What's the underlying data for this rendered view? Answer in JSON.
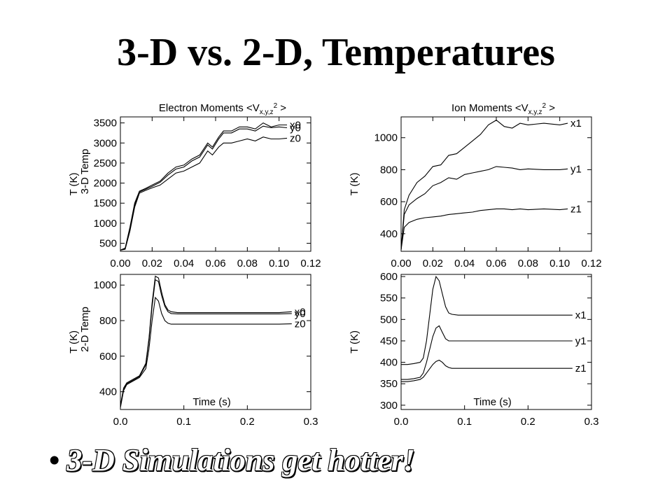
{
  "slide": {
    "title": "3-D vs. 2-D, Temperatures",
    "bullet_marker": "•",
    "bullet": "3-D Simulations get hotter!"
  },
  "chart_data": [
    {
      "id": "p3d_electron",
      "type": "line",
      "title": "Electron Moments <V",
      "title_sub": "x,y,z",
      "title_sup": "2",
      "title_end": ">",
      "ylabel": "T (K)",
      "side_label": "3-D Temp",
      "xlabel": "",
      "xlim": [
        0,
        0.12
      ],
      "ylim": [
        300,
        3650
      ],
      "xticks": [
        "0.00",
        "0.02",
        "0.04",
        "0.06",
        "0.08",
        "0.10",
        "0.12"
      ],
      "yticks": [
        "500",
        "1000",
        "1500",
        "2000",
        "2500",
        "3000",
        "3500"
      ],
      "series": [
        {
          "name": "x0",
          "x": [
            0,
            0.003,
            0.006,
            0.009,
            0.012,
            0.016,
            0.02,
            0.025,
            0.03,
            0.035,
            0.04,
            0.045,
            0.05,
            0.055,
            0.058,
            0.062,
            0.065,
            0.07,
            0.075,
            0.08,
            0.085,
            0.09,
            0.095,
            0.1,
            0.105
          ],
          "y": [
            330,
            380,
            900,
            1500,
            1800,
            1870,
            1950,
            2050,
            2250,
            2400,
            2450,
            2600,
            2700,
            3000,
            2900,
            3150,
            3300,
            3300,
            3400,
            3400,
            3350,
            3500,
            3400,
            3450,
            3450
          ]
        },
        {
          "name": "y0",
          "x": [
            0,
            0.003,
            0.006,
            0.009,
            0.012,
            0.016,
            0.02,
            0.025,
            0.03,
            0.035,
            0.04,
            0.045,
            0.05,
            0.055,
            0.058,
            0.062,
            0.065,
            0.07,
            0.075,
            0.08,
            0.085,
            0.09,
            0.095,
            0.1,
            0.105
          ],
          "y": [
            330,
            360,
            850,
            1450,
            1780,
            1850,
            1920,
            2020,
            2200,
            2350,
            2400,
            2550,
            2650,
            2950,
            2850,
            3100,
            3250,
            3250,
            3350,
            3350,
            3300,
            3420,
            3380,
            3400,
            3380
          ]
        },
        {
          "name": "z0",
          "x": [
            0,
            0.003,
            0.006,
            0.009,
            0.012,
            0.016,
            0.02,
            0.025,
            0.03,
            0.035,
            0.04,
            0.045,
            0.05,
            0.055,
            0.058,
            0.062,
            0.065,
            0.07,
            0.075,
            0.08,
            0.085,
            0.09,
            0.095,
            0.1,
            0.105
          ],
          "y": [
            330,
            350,
            800,
            1400,
            1750,
            1820,
            1880,
            1950,
            2100,
            2250,
            2300,
            2400,
            2500,
            2800,
            2700,
            2900,
            3000,
            3000,
            3050,
            3100,
            3050,
            3150,
            3100,
            3100,
            3120
          ]
        }
      ]
    },
    {
      "id": "p3d_ion",
      "type": "line",
      "title": "Ion Moments <V",
      "title_sub": "x,y,z",
      "title_sup": "2",
      "title_end": ">",
      "ylabel": "T (K)",
      "side_label": "",
      "xlabel": "",
      "xlim": [
        0,
        0.12
      ],
      "ylim": [
        290,
        1130
      ],
      "xticks": [
        "0.00",
        "0.02",
        "0.04",
        "0.06",
        "0.08",
        "0.10",
        "0.12"
      ],
      "yticks": [
        "400",
        "600",
        "800",
        "1000"
      ],
      "series": [
        {
          "name": "x1",
          "x": [
            0,
            0.002,
            0.005,
            0.01,
            0.015,
            0.02,
            0.025,
            0.03,
            0.035,
            0.04,
            0.045,
            0.05,
            0.055,
            0.06,
            0.065,
            0.07,
            0.075,
            0.08,
            0.09,
            0.1,
            0.105
          ],
          "y": [
            300,
            550,
            640,
            720,
            760,
            820,
            830,
            890,
            900,
            940,
            980,
            1020,
            1080,
            1110,
            1070,
            1060,
            1090,
            1080,
            1090,
            1080,
            1090
          ]
        },
        {
          "name": "y1",
          "x": [
            0,
            0.002,
            0.005,
            0.01,
            0.015,
            0.02,
            0.025,
            0.03,
            0.035,
            0.04,
            0.045,
            0.05,
            0.055,
            0.06,
            0.065,
            0.07,
            0.075,
            0.08,
            0.09,
            0.1,
            0.105
          ],
          "y": [
            300,
            520,
            580,
            620,
            650,
            700,
            720,
            750,
            740,
            770,
            780,
            790,
            800,
            820,
            815,
            810,
            800,
            805,
            800,
            800,
            805
          ]
        },
        {
          "name": "z1",
          "x": [
            0,
            0.002,
            0.005,
            0.01,
            0.015,
            0.02,
            0.025,
            0.03,
            0.035,
            0.04,
            0.045,
            0.05,
            0.055,
            0.06,
            0.065,
            0.07,
            0.075,
            0.08,
            0.09,
            0.1,
            0.105
          ],
          "y": [
            300,
            440,
            470,
            490,
            500,
            505,
            510,
            520,
            525,
            530,
            535,
            545,
            550,
            555,
            555,
            550,
            555,
            550,
            555,
            550,
            555
          ]
        }
      ]
    },
    {
      "id": "p2d_electron",
      "type": "line",
      "title": "",
      "ylabel": "T (K)",
      "side_label": "2-D Temp",
      "xlabel": "Time (s)",
      "xlim": [
        0,
        0.3
      ],
      "ylim": [
        300,
        1060
      ],
      "xticks": [
        "0.0",
        "0.1",
        "0.2",
        "0.3"
      ],
      "yticks": [
        "400",
        "600",
        "800",
        "1000"
      ],
      "series": [
        {
          "name": "x0",
          "x": [
            0,
            0.005,
            0.01,
            0.02,
            0.03,
            0.04,
            0.045,
            0.05,
            0.055,
            0.06,
            0.065,
            0.07,
            0.075,
            0.08,
            0.09,
            0.1,
            0.15,
            0.2,
            0.25,
            0.27
          ],
          "y": [
            320,
            420,
            450,
            470,
            490,
            560,
            700,
            900,
            1050,
            1040,
            960,
            890,
            860,
            850,
            845,
            845,
            845,
            845,
            845,
            850
          ]
        },
        {
          "name": "y0",
          "x": [
            0,
            0.005,
            0.01,
            0.02,
            0.03,
            0.04,
            0.045,
            0.05,
            0.055,
            0.06,
            0.065,
            0.07,
            0.075,
            0.08,
            0.09,
            0.1,
            0.15,
            0.2,
            0.25,
            0.27
          ],
          "y": [
            320,
            415,
            445,
            465,
            485,
            550,
            690,
            880,
            1030,
            1020,
            940,
            880,
            850,
            840,
            838,
            838,
            838,
            838,
            838,
            840
          ]
        },
        {
          "name": "z0",
          "x": [
            0,
            0.005,
            0.01,
            0.02,
            0.03,
            0.04,
            0.045,
            0.05,
            0.055,
            0.06,
            0.065,
            0.07,
            0.075,
            0.08,
            0.09,
            0.1,
            0.15,
            0.2,
            0.25,
            0.27
          ],
          "y": [
            310,
            405,
            440,
            460,
            480,
            530,
            640,
            800,
            930,
            910,
            840,
            800,
            785,
            780,
            780,
            780,
            780,
            780,
            780,
            782
          ]
        }
      ]
    },
    {
      "id": "p2d_ion",
      "type": "line",
      "title": "",
      "ylabel": "T (K)",
      "side_label": "",
      "xlabel": "Time (s)",
      "xlim": [
        0,
        0.3
      ],
      "ylim": [
        290,
        605
      ],
      "xticks": [
        "0.0",
        "0.1",
        "0.2",
        "0.3"
      ],
      "yticks": [
        "300",
        "350",
        "400",
        "450",
        "500",
        "550",
        "600"
      ],
      "series": [
        {
          "name": "x1",
          "x": [
            0,
            0.01,
            0.02,
            0.03,
            0.035,
            0.04,
            0.045,
            0.05,
            0.055,
            0.06,
            0.065,
            0.07,
            0.075,
            0.08,
            0.09,
            0.1,
            0.15,
            0.2,
            0.25,
            0.27
          ],
          "y": [
            395,
            395,
            397,
            400,
            410,
            450,
            510,
            570,
            600,
            590,
            560,
            530,
            515,
            512,
            510,
            510,
            510,
            510,
            510,
            510
          ]
        },
        {
          "name": "y1",
          "x": [
            0,
            0.01,
            0.02,
            0.03,
            0.035,
            0.04,
            0.045,
            0.05,
            0.055,
            0.06,
            0.065,
            0.07,
            0.075,
            0.08,
            0.09,
            0.1,
            0.15,
            0.2,
            0.25,
            0.27
          ],
          "y": [
            360,
            360,
            362,
            365,
            375,
            400,
            430,
            460,
            480,
            485,
            470,
            455,
            450,
            450,
            450,
            450,
            450,
            450,
            450,
            450
          ]
        },
        {
          "name": "z1",
          "x": [
            0,
            0.01,
            0.02,
            0.03,
            0.035,
            0.04,
            0.045,
            0.05,
            0.055,
            0.06,
            0.065,
            0.07,
            0.075,
            0.08,
            0.09,
            0.1,
            0.15,
            0.2,
            0.25,
            0.27
          ],
          "y": [
            355,
            355,
            357,
            360,
            365,
            375,
            385,
            395,
            402,
            405,
            400,
            392,
            388,
            386,
            386,
            386,
            386,
            386,
            386,
            386
          ]
        }
      ]
    }
  ]
}
